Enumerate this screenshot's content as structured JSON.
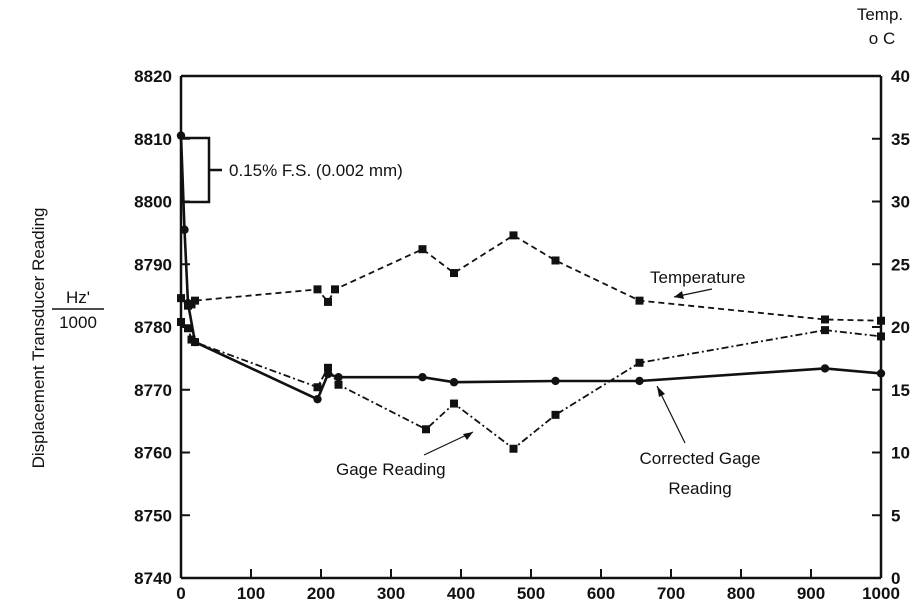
{
  "chart_data": {
    "type": "line",
    "xlim": [
      0,
      1000
    ],
    "ylim": [
      8740,
      8820
    ],
    "y2lim": [
      0,
      40
    ],
    "xticks": [
      0,
      100,
      200,
      300,
      400,
      500,
      600,
      700,
      800,
      900,
      1000
    ],
    "yticks": [
      8740,
      8750,
      8760,
      8770,
      8780,
      8790,
      8800,
      8810,
      8820
    ],
    "y2ticks": [
      0,
      5,
      10,
      15,
      20,
      25,
      30,
      35,
      40
    ],
    "ylabel": "Displacement Transducer Reading",
    "ylabel_units_num": "Hz'",
    "ylabel_units_den": "1000",
    "y2label_line1": "Temp.",
    "y2label_line2": "o C",
    "grid": false,
    "series": [
      {
        "name": "Temperature",
        "axis": "right",
        "style": "dashed",
        "marker": "square",
        "x": [
          0,
          10,
          15,
          20,
          195,
          210,
          220,
          345,
          390,
          475,
          535,
          655,
          920,
          1000
        ],
        "y": [
          22.3,
          21.7,
          21.8,
          22.1,
          23.0,
          22.0,
          23.0,
          26.2,
          24.3,
          27.3,
          25.3,
          22.1,
          20.6,
          20.5
        ]
      },
      {
        "name": "Gage Reading",
        "axis": "left",
        "style": "dash-dot",
        "marker": "square",
        "x": [
          0,
          10,
          15,
          20,
          195,
          210,
          225,
          350,
          390,
          475,
          535,
          655,
          920,
          1000
        ],
        "y": [
          8780.8,
          8779.8,
          8778.0,
          8777.6,
          8770.4,
          8773.5,
          8770.8,
          8763.7,
          8767.8,
          8760.6,
          8766.0,
          8774.3,
          8779.5,
          8778.5
        ]
      },
      {
        "name": "Corrected Gage Reading",
        "axis": "left",
        "style": "solid",
        "marker": "circle",
        "x": [
          0,
          5,
          10,
          20,
          195,
          210,
          225,
          345,
          390,
          535,
          655,
          920,
          1000
        ],
        "y": [
          8810.5,
          8795.5,
          8783.8,
          8777.6,
          8768.5,
          8772.5,
          8772.0,
          8772.0,
          8771.2,
          8771.4,
          8771.4,
          8773.4,
          8772.6
        ]
      }
    ],
    "annotations": {
      "fs_label": "0.15% F.S. (0.002 mm)",
      "temperature_label": "Temperature",
      "gage_label": "Gage Reading",
      "corrected_line1": "Corrected Gage",
      "corrected_line2": "Reading"
    }
  }
}
